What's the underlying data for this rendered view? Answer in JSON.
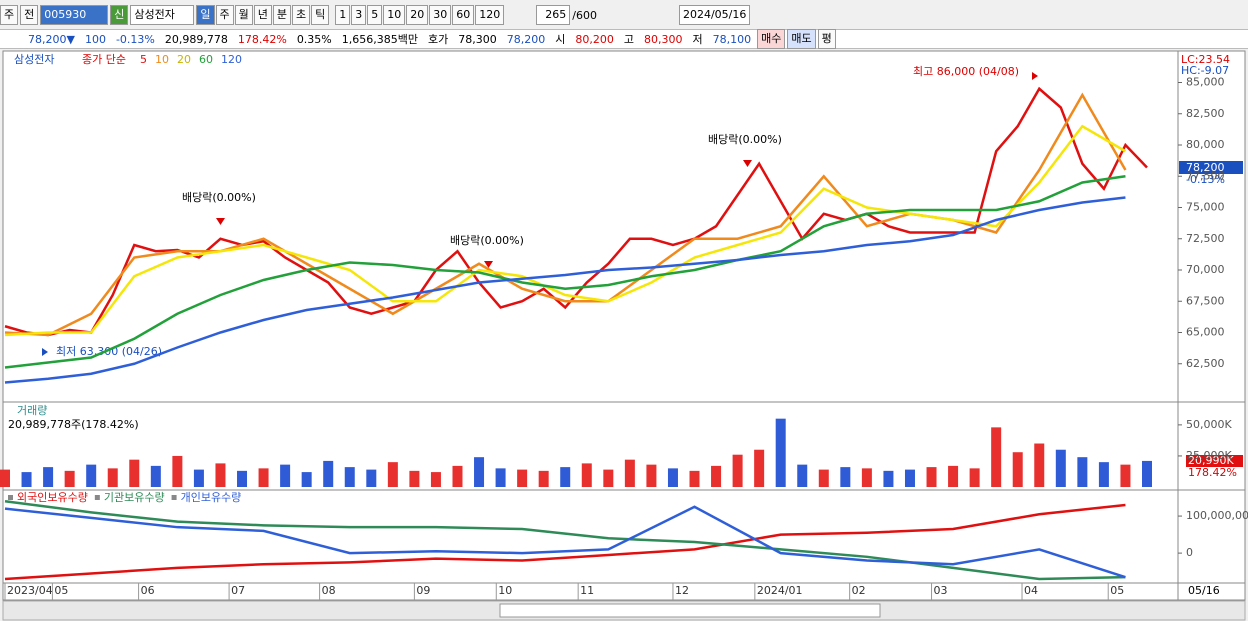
{
  "toolbar": {
    "market": "주",
    "kind": "전",
    "code": "005930",
    "name": "삼성전자",
    "new": "신",
    "periods": [
      "일",
      "주",
      "월",
      "년",
      "분",
      "초",
      "틱"
    ],
    "units": [
      "1",
      "3",
      "5",
      "10",
      "20",
      "30",
      "60",
      "120"
    ],
    "count": "265",
    "max": "/600",
    "date": "2024/05/16"
  },
  "info_bar": {
    "price": "78,200▼",
    "change": "100",
    "rate": "-0.13%",
    "volume": "20,989,778",
    "volume_rate": "178.42%",
    "turnover": "0.35%",
    "amount": "1,656,385백만",
    "quote_label": "호가",
    "ask": "78,300",
    "bid": "78,200",
    "open_label": "시",
    "open": "80,200",
    "high_label": "고",
    "high": "80,300",
    "low_label": "저",
    "low": "78,100",
    "buy": "매수",
    "sell": "매도",
    "avg": "평"
  },
  "chart_data": [
    {
      "type": "line",
      "stock": "삼성전자",
      "ma_label": "종가 단순",
      "xlim": [
        0,
        265
      ],
      "ylim": [
        59600,
        87200
      ],
      "yticks": [
        {
          "value": 62500,
          "label": "62,500"
        },
        {
          "value": 65000,
          "label": "65,000"
        },
        {
          "value": 67500,
          "label": "67,500"
        },
        {
          "value": 70000,
          "label": "70,000"
        },
        {
          "value": 72500,
          "label": "72,500"
        },
        {
          "value": 75000,
          "label": "75,000"
        },
        {
          "value": 77500,
          "label": "77,500"
        },
        {
          "value": 80000,
          "label": "80,000"
        },
        {
          "value": 82500,
          "label": "82,500"
        },
        {
          "value": 85000,
          "label": "85,000"
        }
      ],
      "xticks": [
        {
          "value": 0,
          "label": "2023/04"
        },
        {
          "value": 11,
          "label": "05"
        },
        {
          "value": 31,
          "label": "06"
        },
        {
          "value": 52,
          "label": "07"
        },
        {
          "value": 73,
          "label": "08"
        },
        {
          "value": 95,
          "label": "09"
        },
        {
          "value": 114,
          "label": "10"
        },
        {
          "value": 133,
          "label": "11"
        },
        {
          "value": 155,
          "label": "12"
        },
        {
          "value": 174,
          "label": "2024/01"
        },
        {
          "value": 196,
          "label": "02"
        },
        {
          "value": 215,
          "label": "03"
        },
        {
          "value": 236,
          "label": "04"
        },
        {
          "value": 256,
          "label": "05"
        }
      ],
      "x_end_label": "05/16",
      "series": [
        {
          "name": "5",
          "color": "#e01010",
          "step": 5,
          "values": [
            65500,
            65000,
            64800,
            65200,
            65000,
            68000,
            72000,
            71500,
            71600,
            71000,
            72500,
            72000,
            72300,
            71000,
            70000,
            69000,
            67000,
            66500,
            67000,
            67500,
            70000,
            71500,
            69000,
            67000,
            67500,
            68500,
            67000,
            69000,
            70500,
            72500,
            72500,
            72000,
            72500,
            73500,
            76000,
            78500,
            75500,
            72500,
            74500,
            74000,
            74500,
            73500,
            73000,
            73000,
            73000,
            73000,
            79500,
            81500,
            84500,
            83000,
            78500,
            76500,
            80000,
            78200
          ]
        },
        {
          "name": "10",
          "color": "#f08a1c",
          "step": 10,
          "values": [
            65000,
            64800,
            66500,
            71000,
            71500,
            71500,
            72500,
            70500,
            68500,
            66500,
            68500,
            70500,
            68500,
            67500,
            67500,
            70000,
            72500,
            72500,
            73500,
            77500,
            73500,
            74500,
            74000,
            73000,
            78000,
            84000,
            78000
          ]
        },
        {
          "name": "20",
          "color": "#f5e60a",
          "step": 10,
          "values": [
            64800,
            65000,
            65000,
            69500,
            71000,
            71500,
            72000,
            71000,
            70000,
            67500,
            67500,
            70000,
            69500,
            68000,
            67500,
            69000,
            71000,
            72000,
            73000,
            76500,
            75000,
            74500,
            74000,
            73500,
            77000,
            81500,
            79500
          ]
        },
        {
          "name": "60",
          "color": "#22a03a",
          "step": 10,
          "values": [
            62200,
            62600,
            63000,
            64500,
            66500,
            68000,
            69200,
            70000,
            70600,
            70400,
            70000,
            69800,
            69000,
            68500,
            68800,
            69500,
            70000,
            70800,
            71500,
            73500,
            74500,
            74800,
            74800,
            74800,
            75500,
            77000,
            77500
          ]
        },
        {
          "name": "120",
          "color": "#2f5fd8",
          "step": 10,
          "values": [
            61000,
            61300,
            61700,
            62500,
            63800,
            65000,
            66000,
            66800,
            67300,
            67800,
            68400,
            69000,
            69300,
            69600,
            70000,
            70200,
            70500,
            70800,
            71200,
            71500,
            72000,
            72300,
            72800,
            74000,
            74800,
            75400,
            75800
          ]
        }
      ],
      "annotations": {
        "high": "최고 86,000 (04/08)",
        "low": "최저 63,300 (04/26)",
        "ex_dividend": [
          "배당락(0.00%)",
          "배당락(0.00%)",
          "배당락(0.00%)"
        ],
        "lc": "LC:23.54",
        "hc": "HC:-9.07",
        "current": "78,200",
        "current_rate": "-0.13%"
      }
    },
    {
      "type": "bar",
      "title": "거래량",
      "subtitle": "20,989,778주(178.42%)",
      "xlim": [
        0,
        265
      ],
      "ylim": [
        0,
        66000000
      ],
      "step": 5,
      "yticks": [
        {
          "value": 25000000,
          "label": "25,000K"
        },
        {
          "value": 50000000,
          "label": "50,000K"
        }
      ],
      "current": "20,990K",
      "current_rate": "178.42%",
      "values": [
        14000000,
        12000000,
        16000000,
        13000000,
        18000000,
        15000000,
        22000000,
        17000000,
        25000000,
        14000000,
        19000000,
        13000000,
        15000000,
        18000000,
        12000000,
        21000000,
        16000000,
        14000000,
        20000000,
        13000000,
        12000000,
        17000000,
        24000000,
        15000000,
        14000000,
        13000000,
        16000000,
        19000000,
        14000000,
        22000000,
        18000000,
        15000000,
        13000000,
        17000000,
        26000000,
        30000000,
        55000000,
        18000000,
        14000000,
        16000000,
        15000000,
        13000000,
        14000000,
        16000000,
        17000000,
        15000000,
        48000000,
        28000000,
        35000000,
        30000000,
        24000000,
        20000000,
        18000000,
        20989778
      ]
    },
    {
      "type": "line",
      "xlim": [
        0,
        265
      ],
      "ylim": [
        -78000000,
        165000000
      ],
      "step": 20,
      "yticks": [
        {
          "value": 100000000,
          "label": "100,000,00"
        },
        0
      ],
      "series": [
        {
          "name": "외국인보유수량",
          "color": "#e01010",
          "values": [
            -70000000,
            -55000000,
            -40000000,
            -30000000,
            -25000000,
            -15000000,
            -20000000,
            -5000000,
            10000000,
            50000000,
            55000000,
            65000000,
            105000000,
            130000000
          ]
        },
        {
          "name": "기관보유수량",
          "color": "#2e8b57",
          "values": [
            140000000,
            110000000,
            85000000,
            75000000,
            70000000,
            70000000,
            65000000,
            40000000,
            30000000,
            10000000,
            -10000000,
            -40000000,
            -70000000,
            -65000000
          ]
        },
        {
          "name": "개인보유수량",
          "color": "#2f5fd8",
          "values": [
            120000000,
            95000000,
            70000000,
            60000000,
            0,
            5000000,
            0,
            10000000,
            125000000,
            0,
            -20000000,
            -30000000,
            10000000,
            -65000000
          ]
        }
      ]
    }
  ]
}
